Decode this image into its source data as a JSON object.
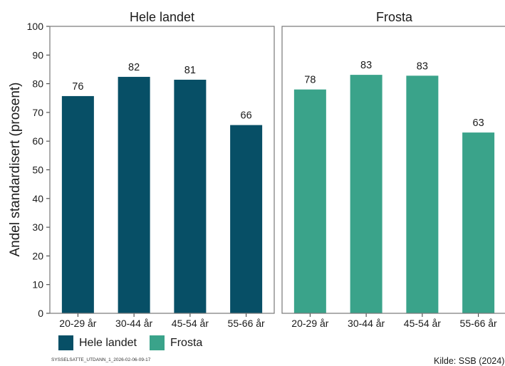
{
  "colors": {
    "hele_landet": "#074f66",
    "frosta": "#3aa38a"
  },
  "chart_data": {
    "type": "bar",
    "ylabel": "Andel standardisert (prosent)",
    "ylim": [
      0,
      100
    ],
    "yticks": [
      0,
      10,
      20,
      30,
      40,
      50,
      60,
      70,
      80,
      90,
      100
    ],
    "categories": [
      "20-29 år",
      "30-44 år",
      "45-54 år",
      "55-66 år"
    ],
    "grid": false,
    "legend_position": "bottom-left",
    "series": [
      {
        "name": "Hele landet",
        "panel_title": "Hele landet",
        "color": "#074f66",
        "values": [
          75.7,
          82.4,
          81.4,
          65.6
        ],
        "labels": [
          "76",
          "82",
          "81",
          "66"
        ]
      },
      {
        "name": "Frosta",
        "panel_title": "Frosta",
        "color": "#3aa38a",
        "values": [
          78.0,
          83.1,
          82.8,
          63.0
        ],
        "labels": [
          "78",
          "83",
          "83",
          "63"
        ]
      }
    ]
  },
  "footer": {
    "id": "SYSSELSATTE_UTDANN_1_2026-02-06-09-17",
    "source": "Kilde: SSB (2024)"
  }
}
